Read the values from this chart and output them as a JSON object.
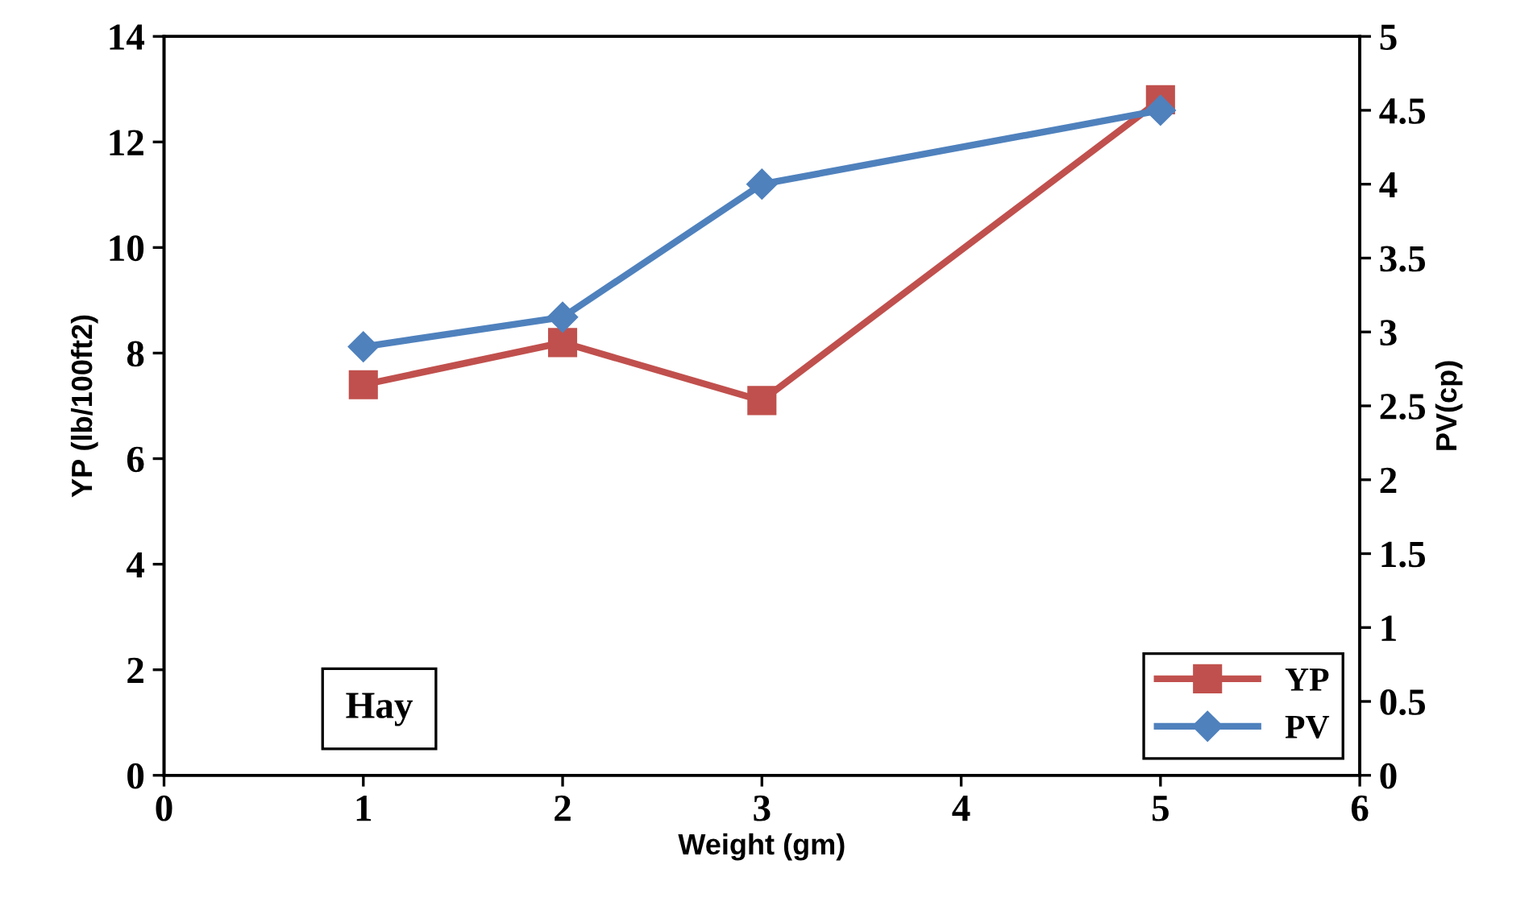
{
  "chart_data": {
    "type": "line",
    "xlabel": "Weight (gm)",
    "ylabel": "YP (lb/100ft2)",
    "y2label": "PV(cp)",
    "x": [
      1,
      2,
      3,
      5
    ],
    "series": [
      {
        "name": "YP",
        "color": "#c0504d",
        "values": [
          7.4,
          8.2,
          7.1,
          12.8
        ],
        "marker": "square"
      },
      {
        "name": "PV",
        "color": "#4f81bd",
        "values": [
          2.9,
          3.1,
          4.0,
          4.5
        ],
        "marker": "diamond",
        "axis": "y2"
      }
    ],
    "xlim": [
      0,
      6
    ],
    "xticks": [
      0,
      1,
      2,
      3,
      4,
      5,
      6
    ],
    "ylim": [
      0,
      14
    ],
    "yticks": [
      0,
      2,
      4,
      6,
      8,
      10,
      12,
      14
    ],
    "y2lim": [
      0,
      5
    ],
    "y2ticks": [
      0,
      0.5,
      1,
      1.5,
      2,
      2.5,
      3,
      3.5,
      4,
      4.5,
      5
    ],
    "annotations": [
      "Hay"
    ],
    "legend": "bottom right",
    "grid": false,
    "line_style": "solid"
  }
}
